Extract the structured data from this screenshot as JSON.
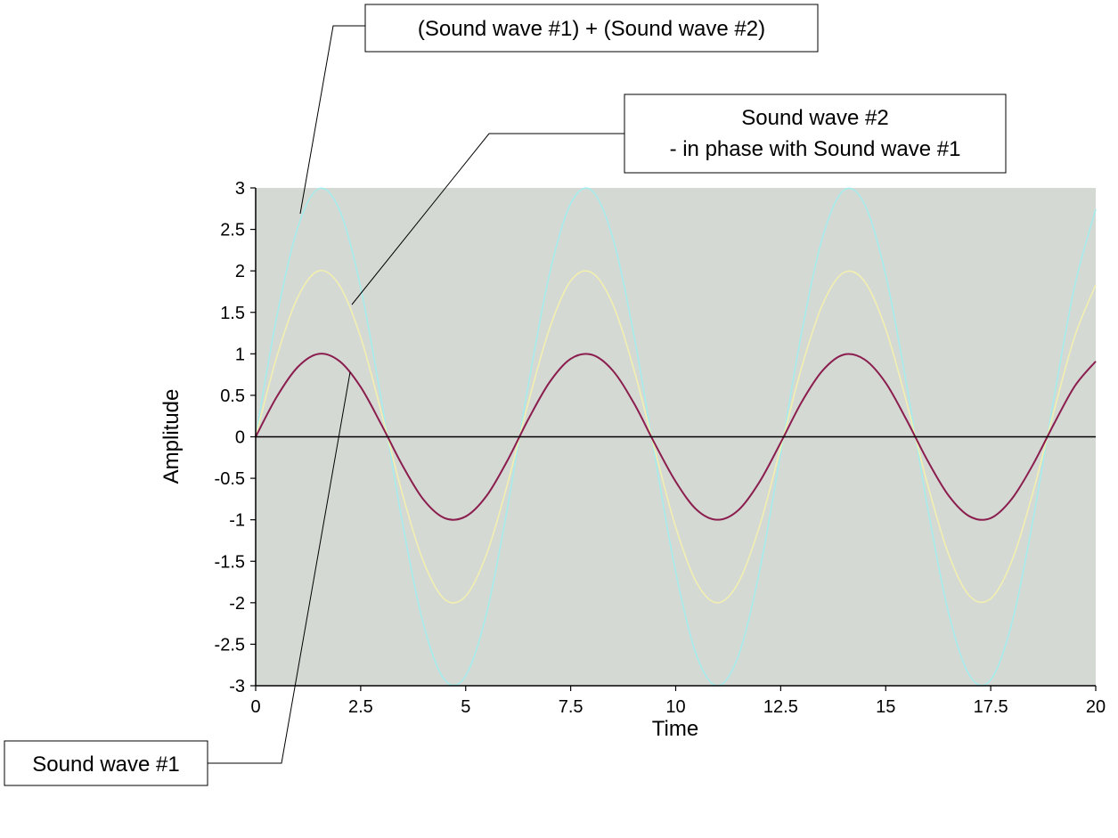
{
  "chart_data": {
    "type": "line",
    "title": "",
    "xlabel": "Time",
    "ylabel": "Amplitude",
    "xlim": [
      0,
      20
    ],
    "ylim": [
      -3,
      3
    ],
    "xticks": [
      "0",
      "2.5",
      "5",
      "7.5",
      "10",
      "12.5",
      "15",
      "17.5",
      "20"
    ],
    "yticks": [
      "3",
      "2.5",
      "2",
      "1.5",
      "1",
      "0.5",
      "0",
      "-0.5",
      "-1",
      "-1.5",
      "-2",
      "-2.5",
      "-3"
    ],
    "grid": false,
    "zero_line": true,
    "background_color": "#d4d9d4",
    "series": [
      {
        "color": "#8b1e4e",
        "x": [
          0,
          0.5,
          1,
          1.5,
          2,
          2.5,
          3,
          3.5,
          4,
          4.5,
          5,
          5.5,
          6,
          6.5,
          7,
          7.5,
          8,
          8.5,
          9,
          9.5,
          10,
          10.5,
          11,
          11.5,
          12,
          12.5,
          13,
          13.5,
          14,
          14.5,
          15,
          15.5,
          16,
          16.5,
          17,
          17.5,
          18,
          18.5,
          19,
          19.5,
          20
        ],
        "values": [
          0,
          0.48,
          0.84,
          1.0,
          0.91,
          0.6,
          0.14,
          -0.35,
          -0.76,
          -0.98,
          -0.96,
          -0.71,
          -0.28,
          0.22,
          0.66,
          0.94,
          0.99,
          0.8,
          0.41,
          -0.08,
          -0.54,
          -0.88,
          -1.0,
          -0.88,
          -0.54,
          -0.07,
          0.42,
          0.8,
          0.99,
          0.93,
          0.65,
          0.2,
          -0.29,
          -0.71,
          -0.96,
          -0.98,
          -0.75,
          -0.34,
          0.15,
          0.61,
          0.91
        ]
      },
      {
        "color": "#f2efb0",
        "x": [
          0,
          0.5,
          1,
          1.5,
          2,
          2.5,
          3,
          3.5,
          4,
          4.5,
          5,
          5.5,
          6,
          6.5,
          7,
          7.5,
          8,
          8.5,
          9,
          9.5,
          10,
          10.5,
          11,
          11.5,
          12,
          12.5,
          13,
          13.5,
          14,
          14.5,
          15,
          15.5,
          16,
          16.5,
          17,
          17.5,
          18,
          18.5,
          19,
          19.5,
          20
        ],
        "values": [
          0,
          0.96,
          1.68,
          2.0,
          1.82,
          1.2,
          0.28,
          -0.7,
          -1.51,
          -1.96,
          -1.92,
          -1.41,
          -0.56,
          0.43,
          1.31,
          1.88,
          1.98,
          1.6,
          0.82,
          -0.15,
          -1.09,
          -1.76,
          -2.0,
          -1.75,
          -1.07,
          -0.13,
          0.84,
          1.6,
          1.98,
          1.87,
          1.3,
          0.41,
          -0.58,
          -1.42,
          -1.92,
          -1.95,
          -1.5,
          -0.68,
          0.3,
          1.21,
          1.83
        ]
      },
      {
        "color": "#a6ecec",
        "x": [
          0,
          0.5,
          1,
          1.5,
          2,
          2.5,
          3,
          3.5,
          4,
          4.5,
          5,
          5.5,
          6,
          6.5,
          7,
          7.5,
          8,
          8.5,
          9,
          9.5,
          10,
          10.5,
          11,
          11.5,
          12,
          12.5,
          13,
          13.5,
          14,
          14.5,
          15,
          15.5,
          16,
          16.5,
          17,
          17.5,
          18,
          18.5,
          19,
          19.5,
          20
        ],
        "values": [
          0,
          1.44,
          2.52,
          2.99,
          2.73,
          1.8,
          0.42,
          -1.05,
          -2.27,
          -2.93,
          -2.88,
          -2.12,
          -0.84,
          0.65,
          1.97,
          2.81,
          2.97,
          2.4,
          1.24,
          -0.22,
          -1.63,
          -2.64,
          -3.0,
          -2.63,
          -1.61,
          -0.2,
          1.26,
          2.41,
          2.97,
          2.8,
          1.95,
          0.62,
          -0.86,
          -2.13,
          -2.88,
          -2.93,
          -2.25,
          -1.02,
          0.45,
          1.82,
          2.74
        ]
      }
    ],
    "annotations": [
      {
        "id": "sum",
        "lines": [
          "(Sound wave #1) + (Sound wave #2)"
        ]
      },
      {
        "id": "wave2",
        "lines": [
          "Sound wave #2",
          "- in phase with Sound wave #1"
        ]
      },
      {
        "id": "wave1",
        "lines": [
          "Sound wave #1"
        ]
      }
    ]
  }
}
